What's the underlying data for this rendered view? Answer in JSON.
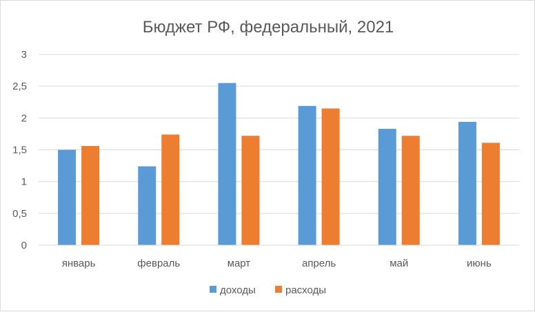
{
  "chart_data": {
    "type": "bar",
    "title": "Бюджет РФ, федеральный, 2021",
    "categories": [
      "январь",
      "февраль",
      "март",
      "апрель",
      "май",
      "июнь"
    ],
    "series": [
      {
        "name": "доходы",
        "color": "#5b9bd5",
        "values": [
          1.5,
          1.24,
          2.55,
          2.19,
          1.83,
          1.94
        ]
      },
      {
        "name": "расходы",
        "color": "#ed7d31",
        "values": [
          1.56,
          1.74,
          1.72,
          2.15,
          1.72,
          1.61
        ]
      }
    ],
    "ylim": [
      0,
      3
    ],
    "yticks": [
      "0",
      "0,5",
      "1",
      "1,5",
      "2",
      "2,5",
      "3"
    ],
    "grid": true,
    "legend_position": "bottom"
  }
}
